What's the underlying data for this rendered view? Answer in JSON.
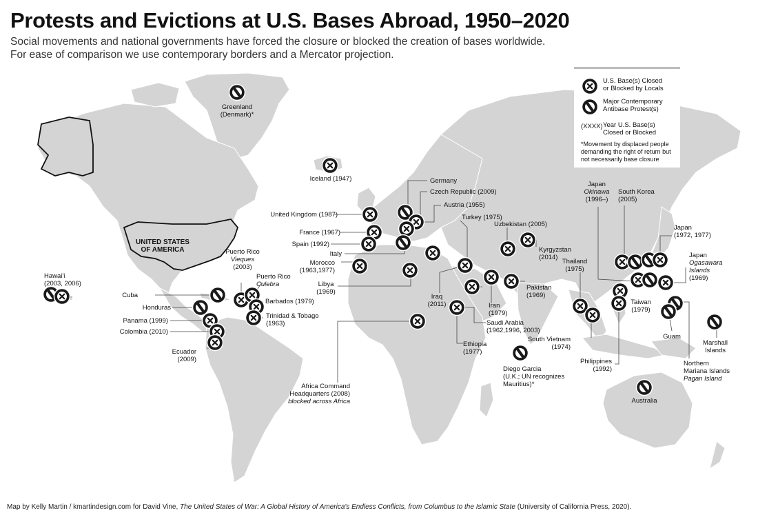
{
  "title": "Protests and Evictions at U.S. Bases Abroad, 1950–2020",
  "subtitle_line1": "Social movements and national governments have forced the closure or blocked the creation of bases worldwide.",
  "subtitle_line2": "For ease of comparison we use contemporary borders and a Mercator projection.",
  "us_label_line1": "UNITED STATES",
  "us_label_line2": "OF AMERICA",
  "colors": {
    "land": "#d4d4d4",
    "marker": "#1a1a1a",
    "legend_bar": "#bdbdbd"
  },
  "legend": {
    "closed_line1": "U.S. Base(s) Closed",
    "closed_line2": "or Blocked by Locals",
    "protest_line1": "Major Contemporary",
    "protest_line2": "Antibase Protest(s)",
    "year_code": "(XXXX)",
    "year_line1": "Year U.S. Base(s)",
    "year_line2": "Closed or Blocked",
    "note_line1": "*Movement by displaced people",
    "note_line2": "demanding the right of return but",
    "note_line3": "not necessarily base closure"
  },
  "locations": {
    "greenland": {
      "name": "Greenland",
      "sub": "(Denmark)*",
      "type": "protest-icon"
    },
    "iceland": {
      "name": "Iceland (1947)",
      "type": "closed-icon"
    },
    "germany": {
      "name": "Germany",
      "type": "protest-icon"
    },
    "czech": {
      "name": "Czech Republic (2009)",
      "type": "closed-icon"
    },
    "austria": {
      "name": "Austria (1955)",
      "type": "closed-icon"
    },
    "uk": {
      "name": "United Kingdom (1987)",
      "type": "closed-icon"
    },
    "france": {
      "name": "France (1967)",
      "type": "closed-icon"
    },
    "spain": {
      "name": "Spain (1992)",
      "type": "closed-icon"
    },
    "italy": {
      "name": "Italy",
      "type": "protest-icon"
    },
    "turkey": {
      "name": "Turkey (1975)",
      "type": "closed-icon"
    },
    "morocco": {
      "name": "Morocco",
      "sub": "(1963,1977)",
      "type": "closed-icon"
    },
    "libya": {
      "name": "Libya",
      "sub": "(1969)",
      "type": "closed-icon"
    },
    "uzbekistan": {
      "name": "Uzbekistan (2005)",
      "type": "closed-icon"
    },
    "kyrgyzstan": {
      "name": "Kyrgyzstan",
      "sub": "(2014)",
      "type": "closed-icon"
    },
    "iraq": {
      "name": "Iraq",
      "sub": "(2011)",
      "type": "closed-icon"
    },
    "iran": {
      "name": "Iran",
      "sub": "(1979)",
      "type": "closed-icon"
    },
    "pakistan": {
      "name": "Pakistan",
      "sub": "(1969)",
      "type": "closed-icon"
    },
    "saudi": {
      "name": "Saudi Arabia",
      "sub": "(1962,1996, 2003)",
      "type": "closed-icon"
    },
    "ethiopia": {
      "name": "Ethiopia",
      "sub": "(1977)",
      "type": "closed-icon"
    },
    "diego_garcia": {
      "name": "Diego Garcia",
      "sub": "(U.K.; UN recognizes",
      "sub2": "Mauritius)*",
      "type": "protest-icon"
    },
    "africa_command": {
      "name": "Africa Command",
      "sub": "Headquarters (2008)",
      "italic": "blocked across Africa",
      "type": "closed-icon"
    },
    "hawaii": {
      "name": "Hawai'i",
      "sub": "(2003, 2006)",
      "type": "protest-icon"
    },
    "cuba": {
      "name": "Cuba",
      "type": "protest-icon"
    },
    "honduras": {
      "name": "Honduras",
      "type": "protest-icon"
    },
    "panama": {
      "name": "Panama (1999)",
      "type": "closed-icon"
    },
    "colombia": {
      "name": "Colombia (2010)",
      "type": "closed-icon"
    },
    "ecuador": {
      "name": "Ecuador",
      "sub": "(2009)",
      "type": "closed-icon"
    },
    "pr_vieques": {
      "name": "Puerto Rico",
      "italic": "Vieques",
      "sub": "(2003)",
      "type": "closed-icon"
    },
    "pr_culebra": {
      "name": "Puerto Rico",
      "italic": "Culebra",
      "sub": "(1970)",
      "type": "closed-icon"
    },
    "barbados": {
      "name": "Barbados (1979)",
      "type": "closed-icon"
    },
    "trinidad": {
      "name": "Trinidad & Tobago",
      "sub": "(1963)",
      "type": "closed-icon"
    },
    "japan_okinawa": {
      "name": "Japan",
      "italic": "Okinawa",
      "sub": "(1996–)",
      "type": "protest-icon"
    },
    "south_korea": {
      "name": "South Korea",
      "sub": "(2005)",
      "type": "closed-icon"
    },
    "japan_1972": {
      "name": "Japan",
      "sub": "(1972, 1977)",
      "type": "closed-icon"
    },
    "japan_ogasawara": {
      "name": "Japan",
      "italic": "Ogasawara",
      "italic2": "Islands",
      "sub": "(1969)",
      "type": "closed-icon"
    },
    "thailand": {
      "name": "Thailand",
      "sub": "(1975)",
      "type": "closed-icon"
    },
    "taiwan": {
      "name": "Taiwan",
      "sub": "(1979)",
      "type": "closed-icon"
    },
    "south_vietnam": {
      "name": "South Vietnam",
      "sub": "(1974)",
      "type": "closed-icon"
    },
    "philippines": {
      "name": "Philippines",
      "sub": "(1992)",
      "type": "closed-icon"
    },
    "guam": {
      "name": "Guam",
      "type": "protest-icon"
    },
    "marshall": {
      "name": "Marshall",
      "sub": "Islands",
      "type": "protest-icon"
    },
    "northern_mariana": {
      "name": "Northern",
      "sub": "Mariana Islands",
      "italic": "Pagan Island",
      "type": "protest-icon"
    },
    "australia": {
      "name": "Australia",
      "type": "protest-icon"
    }
  },
  "credit": {
    "prefix": "Map by Kelly Martin / kmartindesign.com for David Vine, ",
    "book": "The United States of War: A Global History of America's Endless Conflicts, from Columbus to the Islamic State",
    "suffix": " (University of California Press, 2020)."
  }
}
